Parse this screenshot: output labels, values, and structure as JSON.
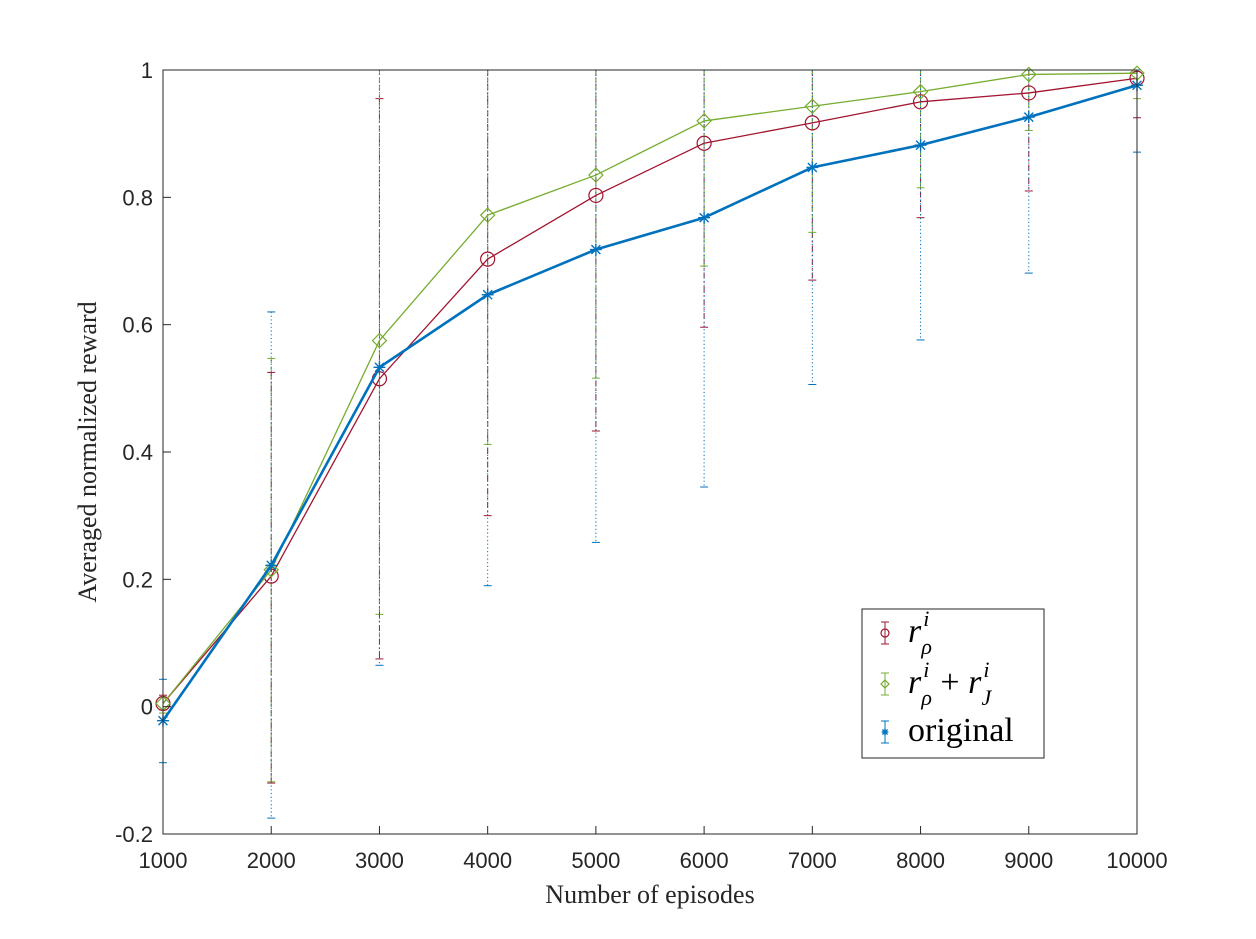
{
  "chart_data": {
    "type": "line",
    "xlabel": "Number of episodes",
    "ylabel": "Averaged normalized reward",
    "xlim": [
      1000,
      10000
    ],
    "ylim": [
      -0.2,
      1
    ],
    "xticks": [
      1000,
      2000,
      3000,
      4000,
      5000,
      6000,
      7000,
      8000,
      9000,
      10000
    ],
    "xtick_labels": [
      "1000",
      "2000",
      "3000",
      "4000",
      "5000",
      "6000",
      "7000",
      "8000",
      "9000",
      "10000"
    ],
    "yticks": [
      -0.2,
      0,
      0.2,
      0.4,
      0.6,
      0.8,
      1
    ],
    "ytick_labels": [
      "-0.2",
      "0",
      "0.2",
      "0.4",
      "0.6",
      "0.8",
      "1"
    ],
    "grid": false,
    "legend_position": "bottom-right",
    "reference_line": {
      "y": 1,
      "style": "dashed",
      "color": "#262626"
    },
    "x": [
      1000,
      2000,
      3000,
      4000,
      5000,
      6000,
      7000,
      8000,
      9000,
      10000
    ],
    "series": [
      {
        "key": "r_rho",
        "legend": {
          "base": "r",
          "sup": "i",
          "sub": "ρ"
        },
        "color": "#A2142F",
        "marker": "circle",
        "values": [
          0.005,
          0.205,
          0.515,
          0.703,
          0.803,
          0.885,
          0.917,
          0.95,
          0.964,
          0.987
        ],
        "err_upper": [
          0.018,
          0.525,
          0.955,
          1.0,
          1.0,
          1.0,
          1.0,
          1.0,
          1.0,
          1.0
        ],
        "err_lower": [
          -0.005,
          -0.12,
          0.075,
          0.3,
          0.433,
          0.596,
          0.67,
          0.768,
          0.81,
          0.925
        ]
      },
      {
        "key": "r_rho_plus_r_J",
        "legend": {
          "base": "r",
          "sup": "i",
          "sub": "ρ",
          "op": "+",
          "base2": "r",
          "sup2": "i",
          "sub2": "J"
        },
        "color": "#77AC30",
        "marker": "diamond",
        "values": [
          0.005,
          0.215,
          0.575,
          0.772,
          0.835,
          0.92,
          0.943,
          0.966,
          0.993,
          0.995
        ],
        "err_upper": [
          0.015,
          0.547,
          1.0,
          1.0,
          1.0,
          1.0,
          1.0,
          1.0,
          1.0,
          1.0
        ],
        "err_lower": [
          -0.01,
          -0.118,
          0.145,
          0.412,
          0.516,
          0.692,
          0.745,
          0.815,
          0.905,
          0.955
        ]
      },
      {
        "key": "original",
        "legend": {
          "text": "original"
        },
        "color": "#0072BD",
        "marker": "asterisk",
        "values": [
          -0.022,
          0.222,
          0.533,
          0.647,
          0.718,
          0.768,
          0.847,
          0.882,
          0.926,
          0.976
        ],
        "err_upper": [
          0.043,
          0.62,
          1.0,
          1.0,
          1.0,
          1.0,
          1.0,
          1.0,
          1.0,
          1.0
        ],
        "err_lower": [
          -0.088,
          -0.175,
          0.065,
          0.19,
          0.258,
          0.345,
          0.506,
          0.576,
          0.681,
          0.871
        ]
      }
    ]
  }
}
